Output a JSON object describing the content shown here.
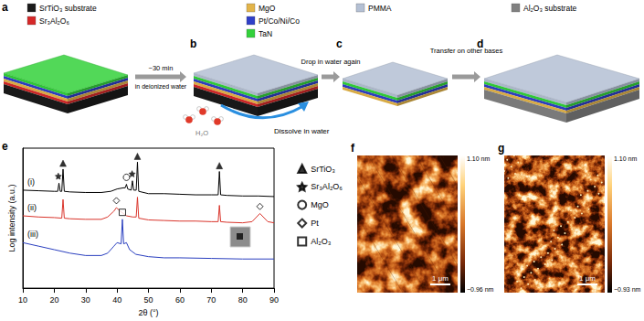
{
  "schematic": {
    "legend": [
      {
        "label": "SrTiO₃ substrate",
        "color": "#1a1a1a"
      },
      {
        "label": "Sr₃Al₂O₆",
        "color": "#d62828"
      },
      {
        "label": "MgO",
        "color": "#e3b448"
      },
      {
        "label": "Pt/Co/Ni/Co",
        "color": "#2f3fc8"
      },
      {
        "label": "TaN",
        "color": "#33d13a"
      },
      {
        "label": "PMMA",
        "color": "#b4c0d4"
      },
      {
        "label": "Al₂O₃ substrate",
        "color": "#808080"
      }
    ],
    "panels": [
      {
        "label": "a",
        "layers": [
          4,
          3,
          2,
          1,
          0
        ]
      },
      {
        "label": "b",
        "layers": [
          5,
          4,
          3,
          2,
          1,
          0
        ]
      },
      {
        "label": "c",
        "layers": [
          5,
          4,
          3,
          2
        ]
      },
      {
        "label": "d",
        "layers": [
          5,
          4,
          3,
          2,
          6
        ]
      }
    ],
    "steps": [
      {
        "above": "~30 min",
        "below": "in deionized water"
      },
      {
        "above": "Drop in water again"
      },
      {
        "above": "Transfer on other bases"
      }
    ],
    "dissolve_label": "Dissolve in water",
    "molecule_label": "H₂O"
  },
  "chart_data": {
    "type": "line",
    "panel_label": "e",
    "x_label": "2θ (°)",
    "y_label": "Log intensity (a.u.)",
    "xlim": [
      10,
      90
    ],
    "xticks": [
      10,
      20,
      30,
      40,
      50,
      60,
      70,
      80,
      90
    ],
    "ylim": [
      0,
      12
    ],
    "tick_labels": "x",
    "grid": false,
    "legend": "right",
    "series": [
      {
        "name": "(i)",
        "color": "#000000",
        "x": [
          10,
          15,
          20,
          21.1,
          21.5,
          21.9,
          22.4,
          22.8,
          23.2,
          25,
          30,
          35,
          38,
          40,
          42,
          42.6,
          43,
          43.4,
          44.5,
          44.9,
          45.3,
          46.1,
          46.5,
          46.9,
          50,
          55,
          60,
          65,
          70,
          72.2,
          72.6,
          73,
          75,
          80,
          85,
          90
        ],
        "values": [
          8.4,
          8.35,
          8.3,
          8.3,
          9.0,
          8.3,
          8.3,
          10.2,
          8.3,
          8.25,
          8.2,
          8.2,
          8.3,
          8.5,
          8.6,
          8.6,
          8.9,
          8.5,
          8.4,
          9.2,
          8.4,
          8.4,
          10.8,
          8.3,
          8.1,
          8.1,
          8.05,
          8.0,
          8.0,
          8.0,
          10.0,
          8.0,
          7.95,
          7.9,
          7.9,
          7.85
        ]
      },
      {
        "name": "(ii)",
        "color": "#d9342b",
        "x": [
          10,
          15,
          20,
          22.4,
          22.8,
          23.2,
          25,
          30,
          35,
          37,
          39,
          39.8,
          41,
          43,
          45,
          46.1,
          46.5,
          46.9,
          50,
          55,
          60,
          65,
          70,
          72.2,
          72.6,
          73,
          75,
          80,
          83,
          85.5,
          88,
          90
        ],
        "values": [
          6.2,
          6.1,
          6.05,
          6.0,
          7.6,
          6.0,
          5.95,
          5.9,
          5.9,
          6.1,
          6.6,
          6.9,
          6.6,
          6.2,
          6.1,
          6.1,
          7.8,
          6.0,
          5.85,
          5.8,
          5.75,
          5.75,
          5.7,
          5.7,
          7.1,
          5.7,
          5.65,
          5.6,
          5.7,
          6.4,
          5.7,
          5.6
        ]
      },
      {
        "name": "(iii)",
        "color": "#2a3fbf",
        "x": [
          10,
          15,
          20,
          25,
          30,
          35,
          37,
          39,
          40,
          41.3,
          41.7,
          42.1,
          43,
          44,
          46,
          50,
          55,
          60,
          70,
          80,
          90
        ],
        "values": [
          3.9,
          3.6,
          3.3,
          3.0,
          2.8,
          2.8,
          3.0,
          3.6,
          3.9,
          3.8,
          5.9,
          3.8,
          3.9,
          3.3,
          2.9,
          2.7,
          2.6,
          2.6,
          2.55,
          2.5,
          2.5
        ]
      }
    ],
    "phases": [
      {
        "name": "SrTiO₃",
        "marker": "triangle",
        "color": "#000000",
        "points": [
          [
            22.8,
            10.7
          ],
          [
            46.5,
            11.3
          ],
          [
            72.6,
            10.5
          ]
        ]
      },
      {
        "name": "Sr₃Al₂O₆",
        "marker": "star",
        "color": "#000000",
        "points": [
          [
            21.3,
            9.6
          ],
          [
            44.8,
            9.8
          ]
        ]
      },
      {
        "name": "MgO",
        "marker": "circle_open",
        "color": "#000000",
        "points": [
          [
            43,
            9.5
          ]
        ]
      },
      {
        "name": "Pt",
        "marker": "diamond_open",
        "color": "#000000",
        "points": [
          [
            39.8,
            7.5
          ],
          [
            85.5,
            7.0
          ]
        ]
      },
      {
        "name": "Al₂O₃",
        "marker": "square_open",
        "color": "#000000",
        "points": [
          [
            41.7,
            6.5
          ]
        ]
      }
    ]
  },
  "afm": [
    {
      "label": "f",
      "colorbar": {
        "max": {
          "value": 1.1,
          "label": "1.10 nm"
        },
        "min": {
          "value": -0.96,
          "label": "−0.96 nm"
        }
      },
      "scale_bar": "1 μm"
    },
    {
      "label": "g",
      "colorbar": {
        "max": {
          "value": 1.1,
          "label": "1.10 nm"
        },
        "min": {
          "value": -0.93,
          "label": "−0.93 nm"
        }
      },
      "scale_bar": "1 μm"
    }
  ]
}
